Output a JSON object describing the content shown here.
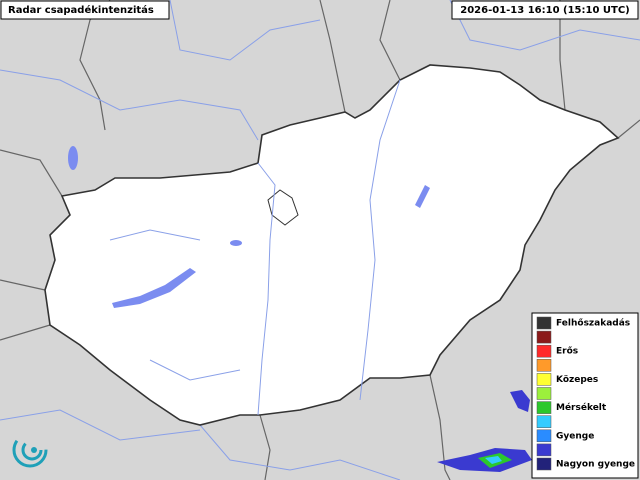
{
  "header": {
    "title": "Radar csapadékintenzitás",
    "timestamp": "2026-01-13 16:10 (15:10 UTC)"
  },
  "legend": {
    "items": [
      {
        "label": "Felhőszakadás",
        "color": "#333333"
      },
      {
        "color": "#8b1a1a"
      },
      {
        "label": "Erős",
        "color": "#ff2a2a"
      },
      {
        "color": "#ff9a2a"
      },
      {
        "label": "Közepes",
        "color": "#ffff33"
      },
      {
        "color": "#9cf03c"
      },
      {
        "label": "Mérsékelt",
        "color": "#2cc82c"
      },
      {
        "color": "#33ccff"
      },
      {
        "label": "Gyenge",
        "color": "#2a8cff"
      },
      {
        "color": "#3a3ad0"
      },
      {
        "label": "Nagyon gyenge",
        "color": "#22227a"
      }
    ]
  }
}
